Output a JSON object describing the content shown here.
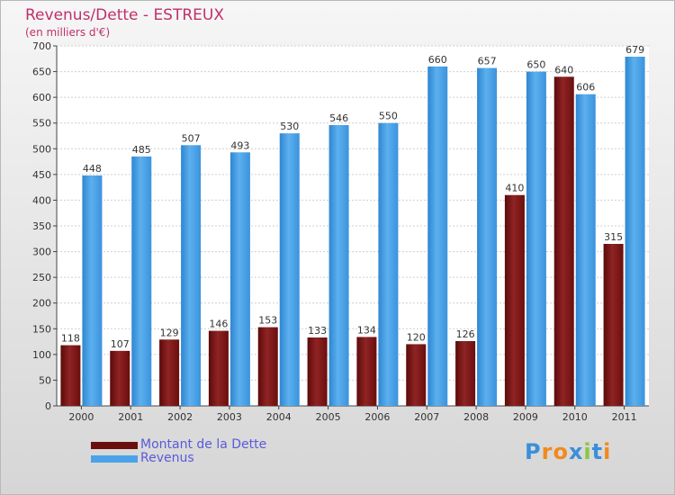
{
  "title": "Revenus/Dette - ESTREUX",
  "subtitle": "(en milliers d'€)",
  "logo": "Proxiti",
  "colors": {
    "debt": "#8b1a1a",
    "revenue": "#4aa3e8",
    "title": "#c0306a"
  },
  "chart_data": {
    "type": "bar",
    "categories": [
      "2000",
      "2001",
      "2002",
      "2003",
      "2004",
      "2005",
      "2006",
      "2007",
      "2008",
      "2009",
      "2010",
      "2011"
    ],
    "series": [
      {
        "name": "Montant de la Dette",
        "values": [
          118,
          107,
          129,
          146,
          153,
          133,
          134,
          120,
          126,
          410,
          640,
          315
        ]
      },
      {
        "name": "Revenus",
        "values": [
          448,
          485,
          507,
          493,
          530,
          546,
          550,
          660,
          657,
          650,
          606,
          679
        ]
      }
    ],
    "ylim": [
      0,
      700
    ],
    "yticks": [
      0,
      50,
      100,
      150,
      200,
      250,
      300,
      350,
      400,
      450,
      500,
      550,
      600,
      650,
      700
    ],
    "grid": true,
    "legend_position": "bottom-left"
  }
}
